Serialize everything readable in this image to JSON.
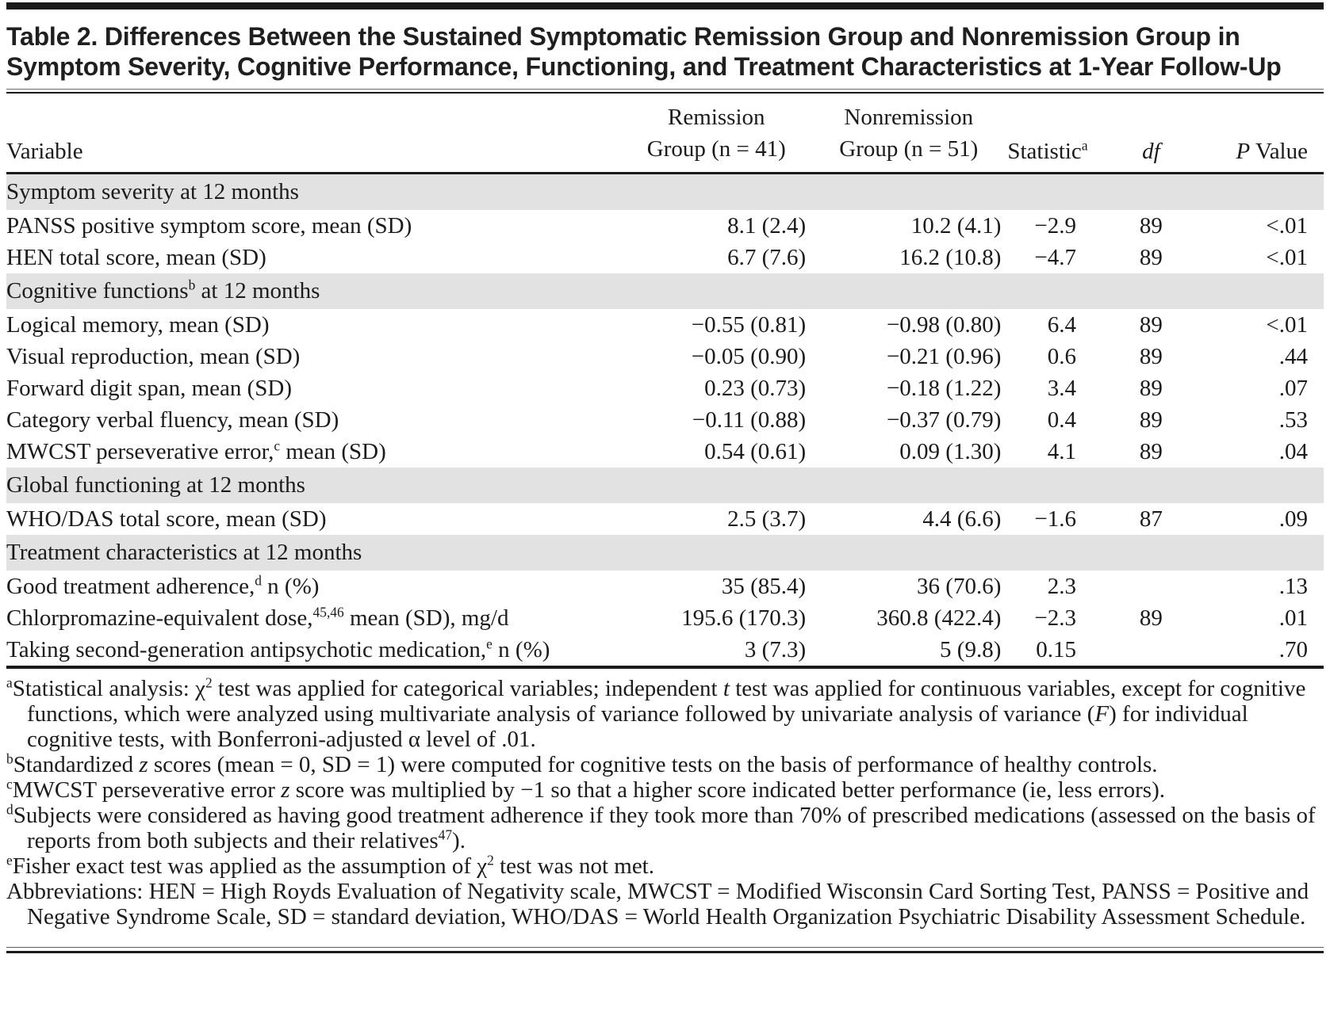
{
  "title": "Table 2. Differences Between the Sustained Symptomatic Remission Group and Nonremission Group in Symptom Severity, Cognitive Performance, Functioning, and Treatment Characteristics at 1-Year Follow-Up",
  "columns": {
    "variable": "Variable",
    "remission_line1": "Remission",
    "remission_line2": "Group (n = 41)",
    "nonremission_line1": "Nonremission",
    "nonremission_line2": "Group (n = 51)",
    "statistic": "Statistic",
    "statistic_sup": "a",
    "df": "df",
    "p_italic": "P",
    "p_rest": " Value"
  },
  "sections": [
    {
      "label": {
        "pre": "Symptom severity at 12 months"
      },
      "rows": [
        {
          "variable": {
            "pre": "PANSS positive symptom score, mean (SD)"
          },
          "remission": "8.1 (2.4)",
          "nonremission": "10.2 (4.1)",
          "statistic": "−2.9",
          "df": "89",
          "p": "<.01"
        },
        {
          "variable": {
            "pre": "HEN total score, mean (SD)"
          },
          "remission": "6.7 (7.6)",
          "nonremission": "16.2 (10.8)",
          "statistic": "−4.7",
          "df": "89",
          "p": "<.01"
        }
      ]
    },
    {
      "label": {
        "pre": "Cognitive functions",
        "sup": "b",
        "post": " at 12 months"
      },
      "rows": [
        {
          "variable": {
            "pre": "Logical memory, mean (SD)"
          },
          "remission": "−0.55 (0.81)",
          "nonremission": "−0.98 (0.80)",
          "statistic": "6.4",
          "df": "89",
          "p": "<.01"
        },
        {
          "variable": {
            "pre": "Visual reproduction, mean (SD)"
          },
          "remission": "−0.05 (0.90)",
          "nonremission": "−0.21 (0.96)",
          "statistic": "0.6",
          "df": "89",
          "p": ".44"
        },
        {
          "variable": {
            "pre": "Forward digit span, mean (SD)"
          },
          "remission": "0.23 (0.73)",
          "nonremission": "−0.18 (1.22)",
          "statistic": "3.4",
          "df": "89",
          "p": ".07"
        },
        {
          "variable": {
            "pre": "Category verbal fluency, mean (SD)"
          },
          "remission": "−0.11 (0.88)",
          "nonremission": "−0.37 (0.79)",
          "statistic": "0.4",
          "df": "89",
          "p": ".53"
        },
        {
          "variable": {
            "pre": "MWCST perseverative error,",
            "sup": "c",
            "post": " mean (SD)"
          },
          "remission": "0.54 (0.61)",
          "nonremission": "0.09 (1.30)",
          "statistic": "4.1",
          "df": "89",
          "p": ".04"
        }
      ]
    },
    {
      "label": {
        "pre": "Global functioning at 12 months"
      },
      "rows": [
        {
          "variable": {
            "pre": "WHO/DAS total score, mean (SD)"
          },
          "remission": "2.5 (3.7)",
          "nonremission": "4.4 (6.6)",
          "statistic": "−1.6",
          "df": "87",
          "p": ".09"
        }
      ]
    },
    {
      "label": {
        "pre": "Treatment characteristics at 12 months"
      },
      "rows": [
        {
          "variable": {
            "pre": "Good treatment adherence,",
            "sup": "d",
            "post": " n (%)"
          },
          "remission": "35 (85.4)",
          "nonremission": "36 (70.6)",
          "statistic": "2.3",
          "df": "",
          "p": ".13"
        },
        {
          "variable": {
            "pre": "Chlorpromazine-equivalent dose,",
            "sup": "45,46",
            "post": " mean (SD), mg/d"
          },
          "remission": "195.6 (170.3)",
          "nonremission": "360.8 (422.4)",
          "statistic": "−2.3",
          "df": "89",
          "p": ".01"
        },
        {
          "variable": {
            "pre": "Taking second-generation antipsychotic medication,",
            "sup": "e",
            "post": " n (%)"
          },
          "remission": "3 (7.3)",
          "nonremission": "5 (9.8)",
          "statistic": "0.15",
          "df": "",
          "p": ".70"
        }
      ]
    }
  ],
  "footnotes": [
    {
      "marker": "a",
      "segments": [
        {
          "t": "Statistical analysis: χ"
        },
        {
          "t": "2",
          "sup": true
        },
        {
          "t": " test was applied for categorical variables; independent "
        },
        {
          "t": "t",
          "i": true
        },
        {
          "t": " test was applied for continuous variables, except for cognitive functions, which were analyzed using multivariate analysis of variance followed by univariate analysis of variance ("
        },
        {
          "t": "F",
          "i": true
        },
        {
          "t": ") for individual cognitive tests, with Bonferroni-adjusted α level of .01."
        }
      ]
    },
    {
      "marker": "b",
      "segments": [
        {
          "t": "Standardized "
        },
        {
          "t": "z",
          "i": true
        },
        {
          "t": " scores (mean = 0, SD = 1) were computed for cognitive tests on the basis of performance of healthy controls."
        }
      ]
    },
    {
      "marker": "c",
      "segments": [
        {
          "t": "MWCST perseverative error "
        },
        {
          "t": "z",
          "i": true
        },
        {
          "t": " score was multiplied by −1 so that a higher score indicated better performance (ie, less errors)."
        }
      ]
    },
    {
      "marker": "d",
      "segments": [
        {
          "t": "Subjects were considered as having good treatment adherence if they took more than 70% of prescribed medications (assessed on the basis of reports from both subjects and their relatives"
        },
        {
          "t": "47",
          "sup": true
        },
        {
          "t": ")."
        }
      ]
    },
    {
      "marker": "e",
      "segments": [
        {
          "t": "Fisher exact test was applied as the assumption of χ"
        },
        {
          "t": "2",
          "sup": true
        },
        {
          "t": " test was not met."
        }
      ]
    },
    {
      "marker": "",
      "segments": [
        {
          "t": "Abbreviations: HEN = High Royds Evaluation of Negativity scale, MWCST = Modified Wisconsin Card Sorting Test, PANSS = Positive and Negative Syndrome Scale, SD = standard deviation, WHO/DAS = World Health Organization Psychiatric Disability Assessment Schedule."
        }
      ]
    }
  ],
  "colors": {
    "section_band": "#e2e2e2",
    "rule_color": "#1a1a1a",
    "text_color": "#1b1b1b",
    "title_color": "#1f1f1f"
  }
}
